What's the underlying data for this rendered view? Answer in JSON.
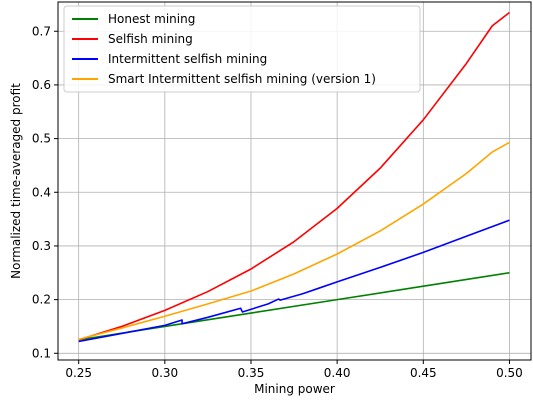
{
  "chart_data": {
    "type": "line",
    "title": "",
    "xlabel": "Mining power",
    "ylabel": "Normalized time-averaged profit",
    "xlim": [
      0.238,
      0.5125
    ],
    "ylim": [
      0.0875,
      0.7545
    ],
    "x_ticks": [
      0.25,
      0.3,
      0.35,
      0.4,
      0.45,
      0.5
    ],
    "x_tick_labels": [
      "0.25",
      "0.30",
      "0.35",
      "0.40",
      "0.45",
      "0.50"
    ],
    "y_ticks": [
      0.1,
      0.2,
      0.3,
      0.4,
      0.5,
      0.6,
      0.7
    ],
    "y_tick_labels": [
      "0.1",
      "0.2",
      "0.3",
      "0.4",
      "0.5",
      "0.6",
      "0.7"
    ],
    "grid": true,
    "legend_position": "top-left",
    "series": [
      {
        "name": "Honest mining",
        "color": "#008000",
        "x": [
          0.25,
          0.3,
          0.35,
          0.4,
          0.45,
          0.5
        ],
        "y": [
          0.125,
          0.15,
          0.175,
          0.2,
          0.225,
          0.25
        ]
      },
      {
        "name": "Selfish mining",
        "color": "#ff0000",
        "x": [
          0.25,
          0.275,
          0.3,
          0.325,
          0.35,
          0.375,
          0.4,
          0.425,
          0.45,
          0.475,
          0.49,
          0.5
        ],
        "y": [
          0.125,
          0.15,
          0.18,
          0.215,
          0.257,
          0.308,
          0.37,
          0.445,
          0.535,
          0.64,
          0.71,
          0.735
        ]
      },
      {
        "name": "Intermittent selfish mining",
        "color": "#0000ff",
        "x": [
          0.25,
          0.28,
          0.3,
          0.31,
          0.31,
          0.325,
          0.344,
          0.345,
          0.36,
          0.366,
          0.367,
          0.38,
          0.39,
          0.4,
          0.425,
          0.45,
          0.475,
          0.5
        ],
        "y": [
          0.122,
          0.14,
          0.152,
          0.162,
          0.155,
          0.167,
          0.184,
          0.177,
          0.192,
          0.201,
          0.199,
          0.211,
          0.222,
          0.233,
          0.26,
          0.288,
          0.318,
          0.348
        ]
      },
      {
        "name": "Smart Intermittent selfish mining (version 1)",
        "color": "#ffa500",
        "x": [
          0.25,
          0.275,
          0.3,
          0.325,
          0.35,
          0.375,
          0.4,
          0.425,
          0.45,
          0.475,
          0.49,
          0.5
        ],
        "y": [
          0.126,
          0.147,
          0.169,
          0.192,
          0.216,
          0.248,
          0.285,
          0.328,
          0.378,
          0.435,
          0.475,
          0.493
        ]
      }
    ]
  }
}
